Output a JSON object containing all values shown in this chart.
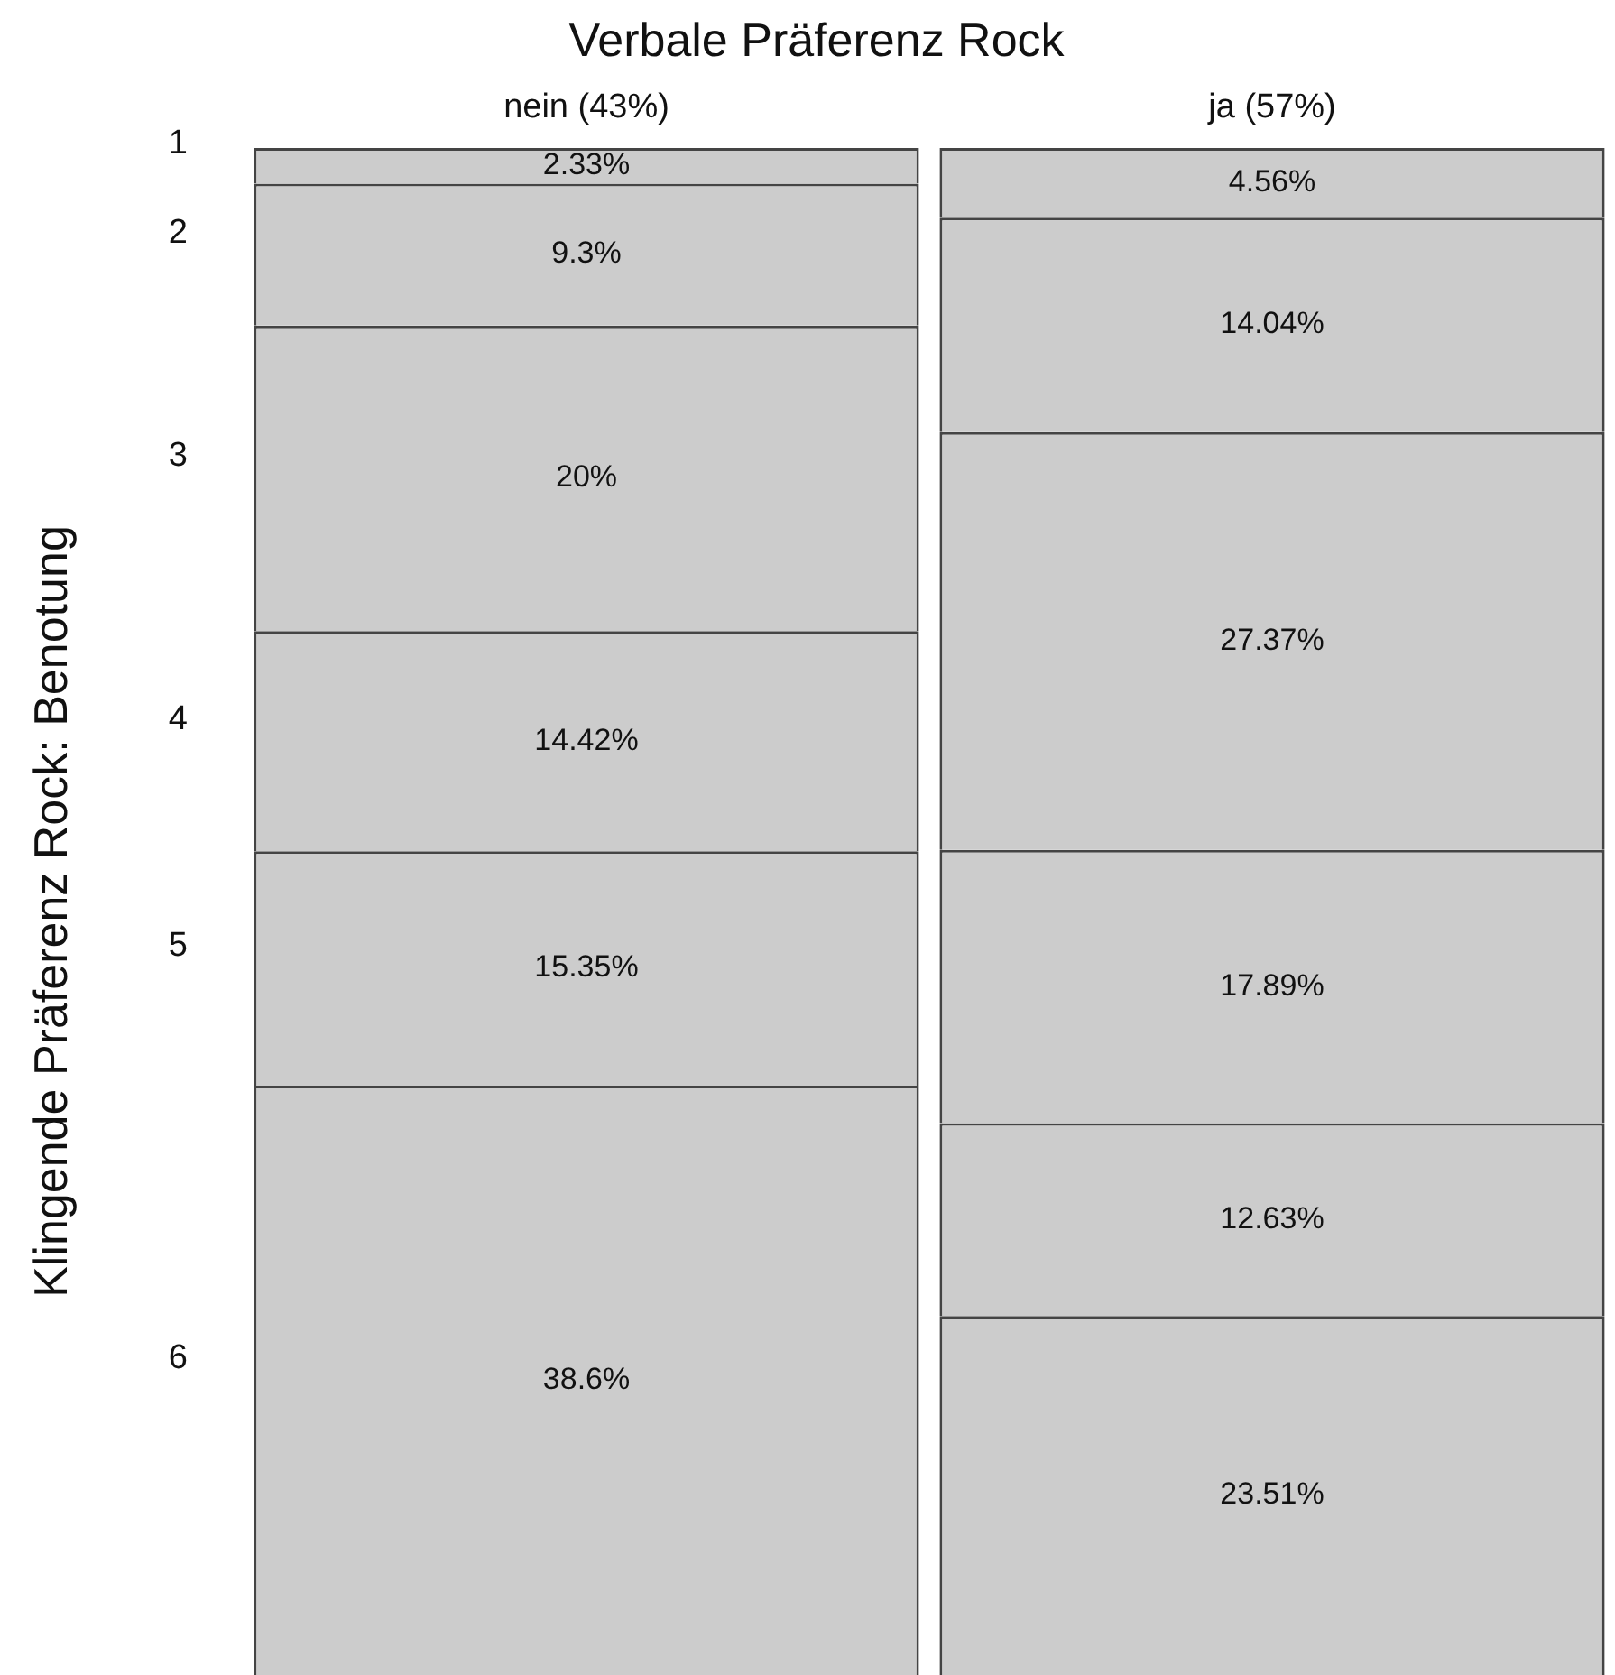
{
  "chart_data": {
    "type": "bar",
    "stacked": true,
    "title": "Verbale Präferenz Rock",
    "ylabel": "Klingende Präferenz Rock: Benotung",
    "categories": [
      "nein (43%)",
      "ja (57%)"
    ],
    "ylim": [
      0,
      100
    ],
    "tick_labels": "x",
    "legend": false,
    "grid": false,
    "series": [
      {
        "name": "6",
        "color": "#cccccc",
        "values": [
          38.6,
          23.51
        ],
        "value_labels": [
          "38.6%",
          "23.51%"
        ]
      },
      {
        "name": "5",
        "color": "#cccccc",
        "values": [
          15.35,
          12.63
        ],
        "value_labels": [
          "15.35%",
          "12.63%"
        ]
      },
      {
        "name": "4",
        "color": "#cccccc",
        "values": [
          14.42,
          17.89
        ],
        "value_labels": [
          "14.42%",
          "17.89%"
        ]
      },
      {
        "name": "3",
        "color": "#cccccc",
        "values": [
          20,
          27.37
        ],
        "value_labels": [
          "20%",
          "27.37%"
        ]
      },
      {
        "name": "2",
        "color": "#cccccc",
        "values": [
          9.3,
          14.04
        ],
        "value_labels": [
          "9.3%",
          "14.04%"
        ]
      },
      {
        "name": "1",
        "color": "#cccccc",
        "values": [
          2.33,
          4.56
        ],
        "value_labels": [
          "2.33%",
          "4.56%"
        ]
      }
    ]
  }
}
